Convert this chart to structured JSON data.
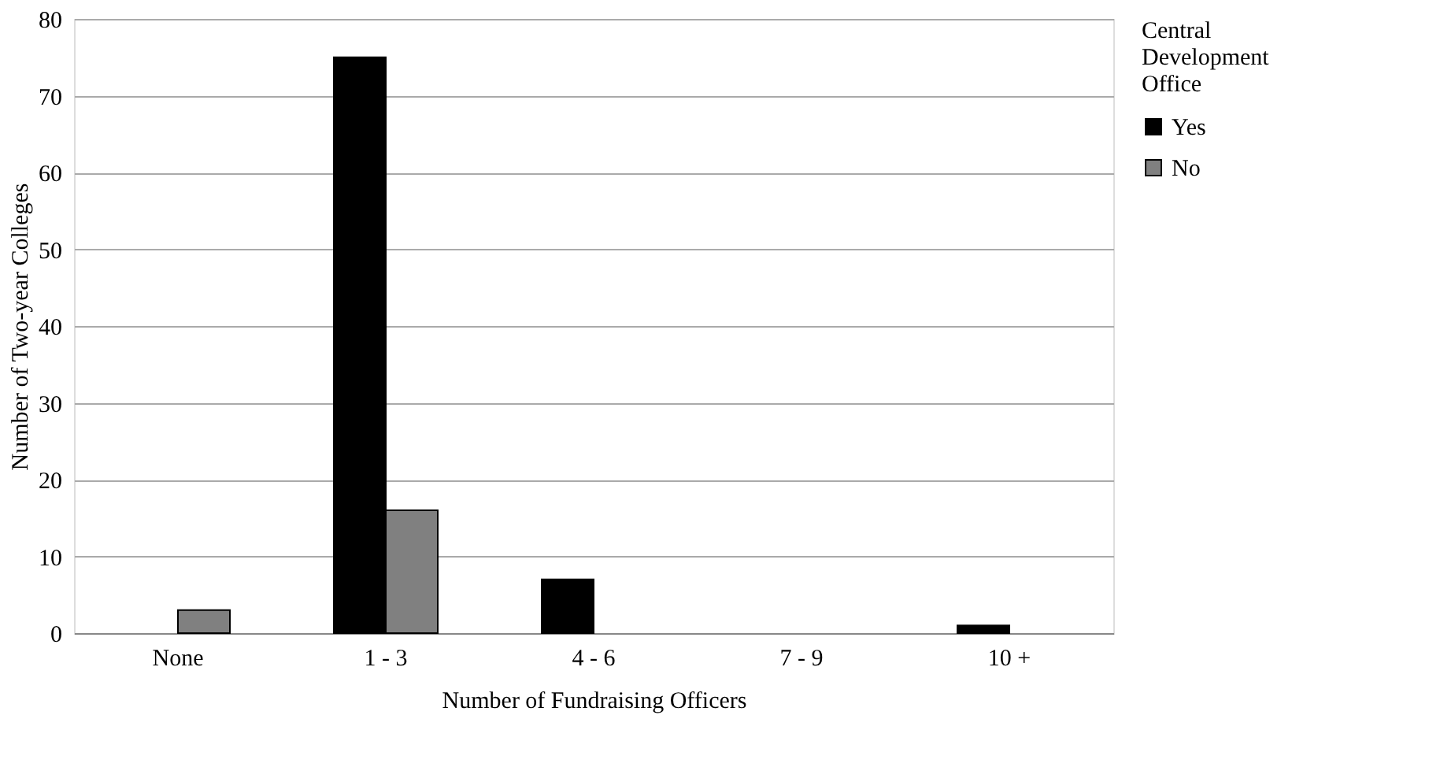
{
  "chart_data": {
    "type": "bar",
    "xlabel": "Number of Fundraising Officers",
    "ylabel": "Number of Two-year Colleges",
    "legend_title": "Central Development Office",
    "categories": [
      "None",
      "1 - 3",
      "4 - 6",
      "7 - 9",
      "10 +"
    ],
    "series": [
      {
        "name": "Yes",
        "color": "#000000",
        "values": [
          0,
          75,
          7,
          0,
          1
        ]
      },
      {
        "name": "No",
        "color": "#808080",
        "values": [
          3,
          16,
          0,
          0,
          0
        ]
      }
    ],
    "ylim": [
      0,
      80
    ],
    "yticks": [
      0,
      10,
      20,
      30,
      40,
      50,
      60,
      70,
      80
    ],
    "grid": "y",
    "legend": "right"
  }
}
